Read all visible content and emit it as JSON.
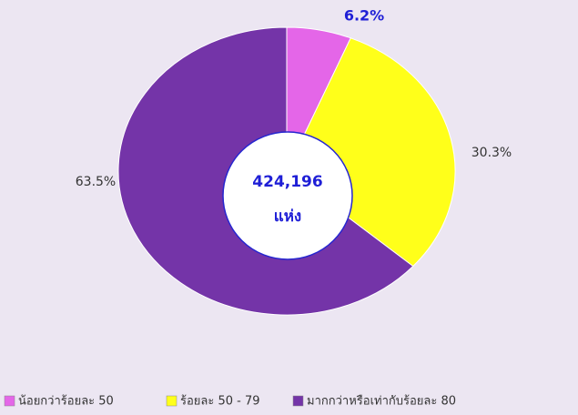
{
  "chart_data": {
    "type": "pie",
    "categories": [
      "น้อยกว่าร้อยละ 50",
      "ร้อยละ 50 - 79",
      "มากกว่าหรือเท่ากับร้อยละ 80"
    ],
    "values": [
      6.2,
      30.3,
      63.5
    ],
    "value_labels": [
      "6.2%",
      "30.3%",
      "63.5%"
    ],
    "colors": [
      "#e466e8",
      "#ffff1a",
      "#7434a8"
    ],
    "center_label": [
      "424,196",
      "แห่ง"
    ],
    "legend": "bottom"
  }
}
